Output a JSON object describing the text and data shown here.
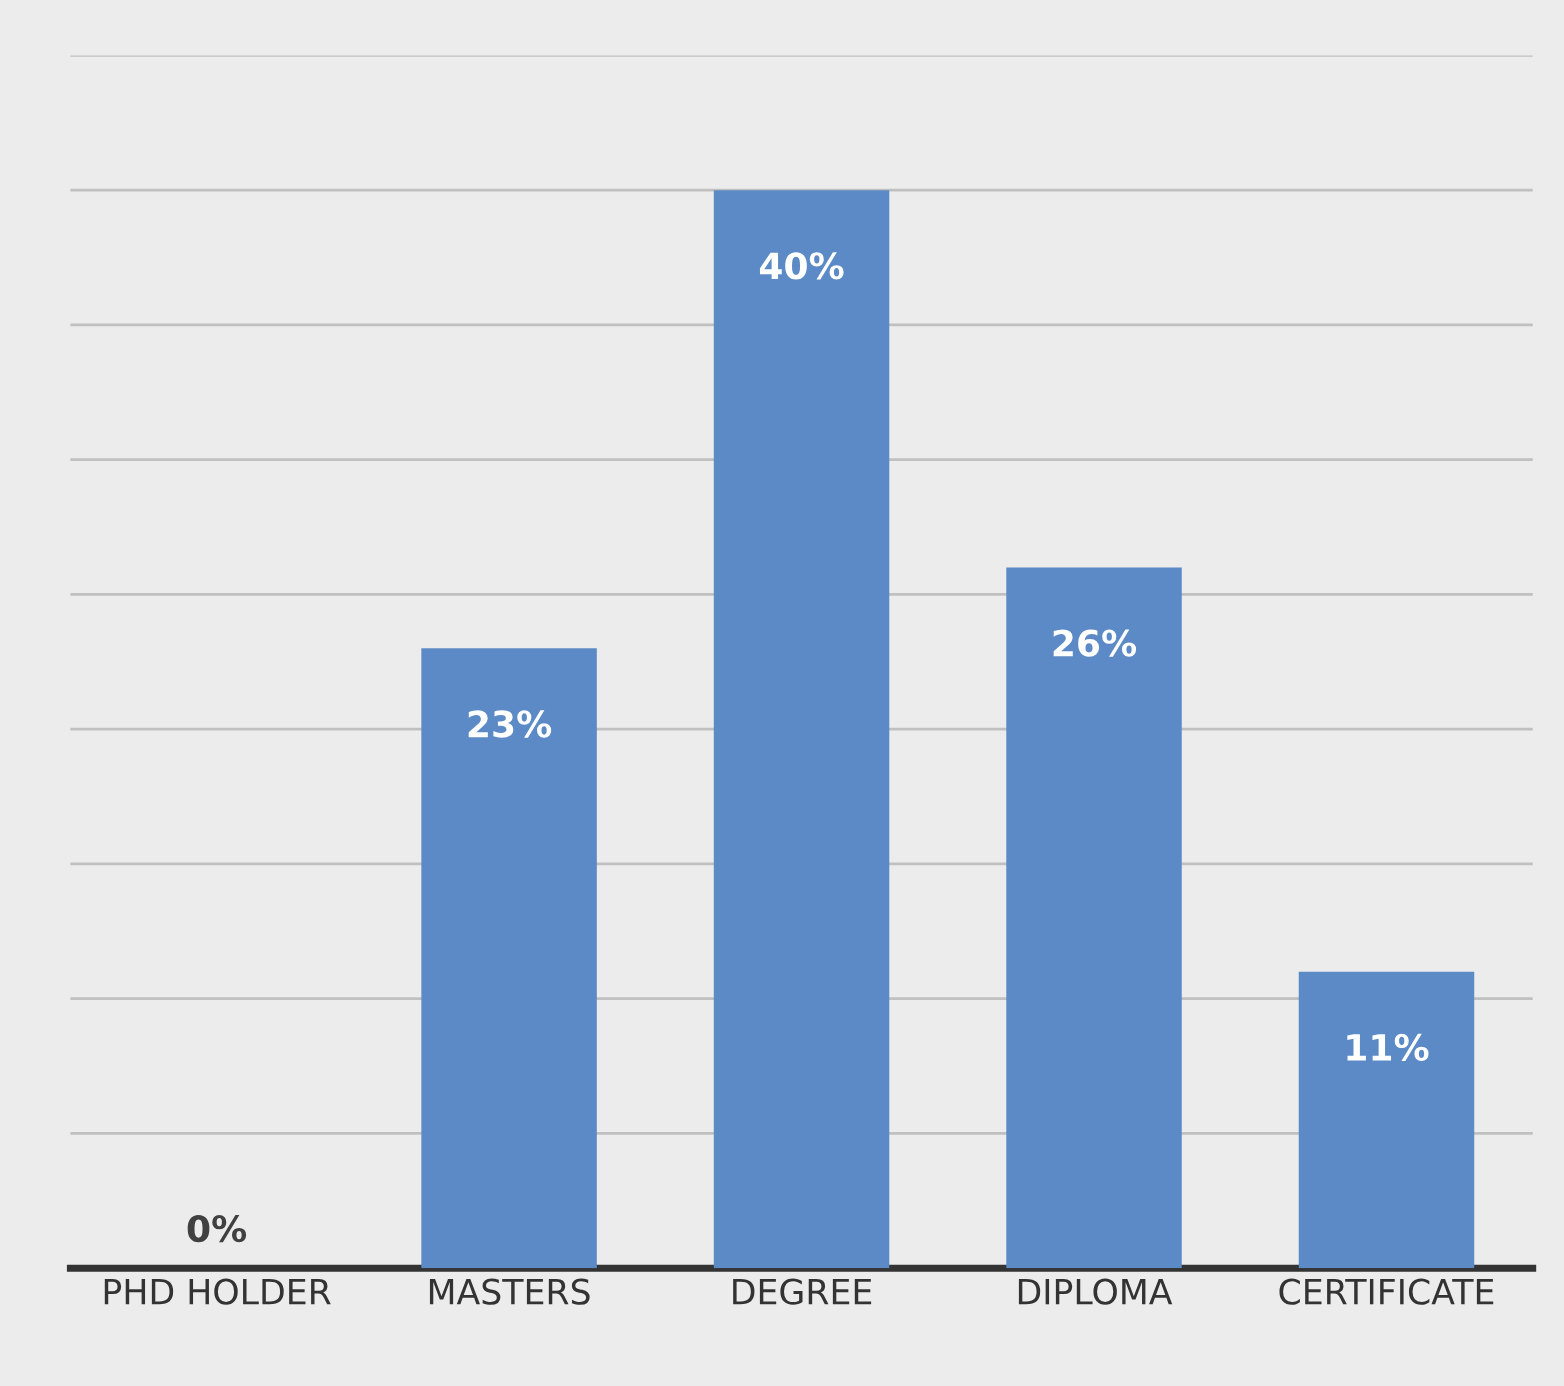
{
  "chart_data": {
    "type": "bar",
    "categories": [
      "PHD HOLDER",
      "MASTERS",
      "DEGREE",
      "DIPLOMA",
      "CERTIFICATE"
    ],
    "values": [
      0,
      23,
      40,
      26,
      11
    ],
    "value_labels": [
      "0%",
      "23%",
      "40%",
      "26%",
      "11%"
    ],
    "color": "#5b8ac6",
    "ylim": [
      0,
      45
    ],
    "yticks": [
      {
        "value": 0,
        "label": null
      },
      {
        "value": 5,
        "label": null
      },
      {
        "value": 10,
        "label": null
      },
      {
        "value": 15,
        "label": null
      },
      {
        "value": 20,
        "label": null
      },
      {
        "value": 25,
        "label": null
      },
      {
        "value": 30,
        "label": null
      },
      {
        "value": 35,
        "label": null
      },
      {
        "value": 40,
        "label": null
      },
      {
        "value": 45,
        "label": null
      }
    ],
    "grid": "y",
    "tick_labels": "x"
  }
}
